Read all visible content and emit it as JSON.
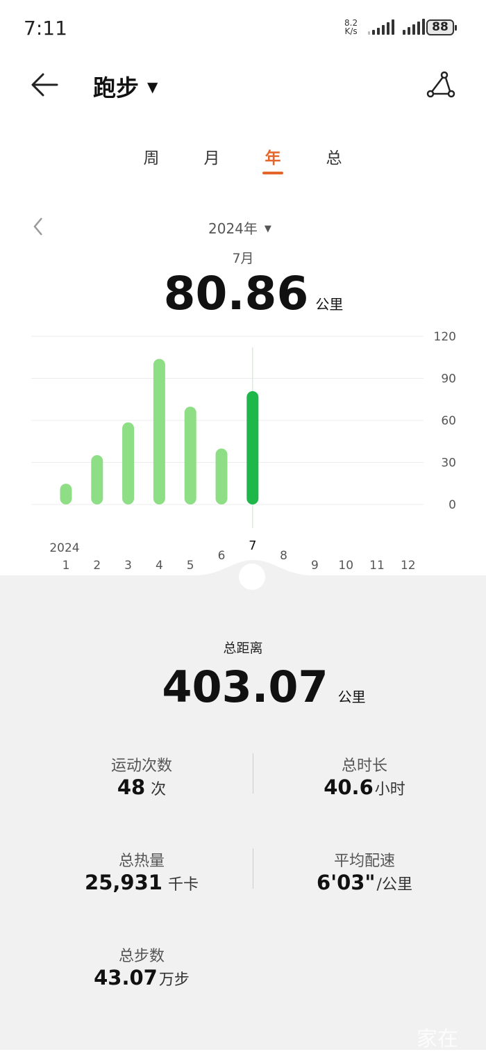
{
  "status": {
    "time": "7:11",
    "net_speed_value": "8.2",
    "net_speed_unit": "K/s",
    "battery": "88"
  },
  "header": {
    "title": "跑步",
    "back_icon": "arrow-left-icon",
    "share_icon": "share-icon"
  },
  "tabs": [
    {
      "label": "周"
    },
    {
      "label": "月"
    },
    {
      "label": "年",
      "active": true
    },
    {
      "label": "总"
    }
  ],
  "period": {
    "year_label": "2024年",
    "selected_month": "7月",
    "selected_value": "80.86",
    "unit": "公里"
  },
  "chart_data": {
    "type": "bar",
    "categories": [
      "1",
      "2",
      "3",
      "4",
      "5",
      "6",
      "7",
      "8",
      "9",
      "10",
      "11",
      "12"
    ],
    "year_tick": "2024",
    "values": [
      14.8,
      35.2,
      58.6,
      103.9,
      69.8,
      39.9,
      80.86,
      null,
      null,
      null,
      null,
      null
    ],
    "selected": "7",
    "yticks": [
      "0",
      "30",
      "60",
      "90",
      "120"
    ],
    "ylim": [
      0,
      120
    ],
    "grid": true,
    "colors": {
      "bar": "#8ede86",
      "selected": "#1fb74a"
    }
  },
  "summary": {
    "total_label": "总距离",
    "total_value": "403.07",
    "total_unit": "公里",
    "stats": [
      {
        "label": "运动次数",
        "value": "48",
        "unit": "次"
      },
      {
        "label": "总时长",
        "value": "40.6",
        "unit": "小时"
      },
      {
        "label": "总热量",
        "value": "25,931",
        "unit": "千卡"
      },
      {
        "label": "平均配速",
        "value": "6'03\"",
        "unit": "/公里"
      },
      {
        "label": "总步数",
        "value": "43.07",
        "unit": "万步"
      }
    ]
  },
  "watermark": "家在"
}
